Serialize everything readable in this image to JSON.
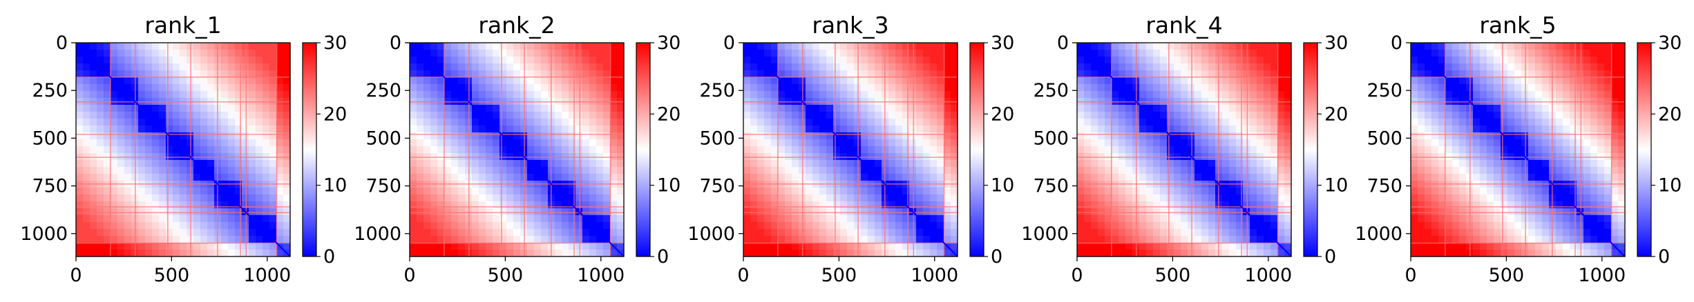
{
  "chart_data": [
    {
      "type": "heatmap",
      "title": "rank_1",
      "xlabel": "",
      "ylabel": "",
      "xlim": [
        0,
        1120
      ],
      "ylim": [
        1120,
        0
      ],
      "xticks": [
        0,
        500,
        1000
      ],
      "yticks": [
        0,
        250,
        500,
        750,
        1000
      ],
      "colorbar": {
        "min": 0,
        "max": 30,
        "ticks": [
          0,
          10,
          20,
          30
        ],
        "colormap": "bwr"
      },
      "domain_breaks": [
        180,
        310,
        480,
        600,
        740,
        860,
        890,
        1050
      ],
      "near_diagonal_value": 4,
      "far_value": 26,
      "grid": false
    },
    {
      "type": "heatmap",
      "title": "rank_2",
      "xlabel": "",
      "ylabel": "",
      "xlim": [
        0,
        1120
      ],
      "ylim": [
        1120,
        0
      ],
      "xticks": [
        0,
        500,
        1000
      ],
      "yticks": [
        0,
        250,
        500,
        750,
        1000
      ],
      "colorbar": {
        "min": 0,
        "max": 30,
        "ticks": [
          0,
          10,
          20,
          30
        ],
        "colormap": "bwr"
      },
      "domain_breaks": [
        180,
        310,
        480,
        600,
        740,
        860,
        890,
        1050
      ],
      "near_diagonal_value": 4,
      "far_value": 27,
      "grid": false
    },
    {
      "type": "heatmap",
      "title": "rank_3",
      "xlabel": "",
      "ylabel": "",
      "xlim": [
        0,
        1120
      ],
      "ylim": [
        1120,
        0
      ],
      "xticks": [
        0,
        500,
        1000
      ],
      "yticks": [
        0,
        250,
        500,
        750,
        1000
      ],
      "colorbar": {
        "min": 0,
        "max": 30,
        "ticks": [
          0,
          10,
          20,
          30
        ],
        "colormap": "bwr"
      },
      "domain_breaks": [
        180,
        310,
        480,
        600,
        740,
        860,
        890,
        1050
      ],
      "near_diagonal_value": 4,
      "far_value": 28,
      "grid": false
    },
    {
      "type": "heatmap",
      "title": "rank_4",
      "xlabel": "",
      "ylabel": "",
      "xlim": [
        0,
        1120
      ],
      "ylim": [
        1120,
        0
      ],
      "xticks": [
        0,
        500,
        1000
      ],
      "yticks": [
        0,
        250,
        500,
        750,
        1000
      ],
      "colorbar": {
        "min": 0,
        "max": 30,
        "ticks": [
          0,
          10,
          20,
          30
        ],
        "colormap": "bwr"
      },
      "domain_breaks": [
        180,
        310,
        480,
        600,
        740,
        860,
        890,
        1050
      ],
      "near_diagonal_value": 4,
      "far_value": 28,
      "grid": false
    },
    {
      "type": "heatmap",
      "title": "rank_5",
      "xlabel": "",
      "ylabel": "",
      "xlim": [
        0,
        1120
      ],
      "ylim": [
        1120,
        0
      ],
      "xticks": [
        0,
        500,
        1000
      ],
      "yticks": [
        0,
        250,
        500,
        750,
        1000
      ],
      "colorbar": {
        "min": 0,
        "max": 30,
        "ticks": [
          0,
          10,
          20,
          30
        ],
        "colormap": "bwr"
      },
      "domain_breaks": [
        180,
        310,
        480,
        600,
        740,
        860,
        890,
        1050
      ],
      "near_diagonal_value": 4,
      "far_value": 29,
      "grid": false
    }
  ]
}
